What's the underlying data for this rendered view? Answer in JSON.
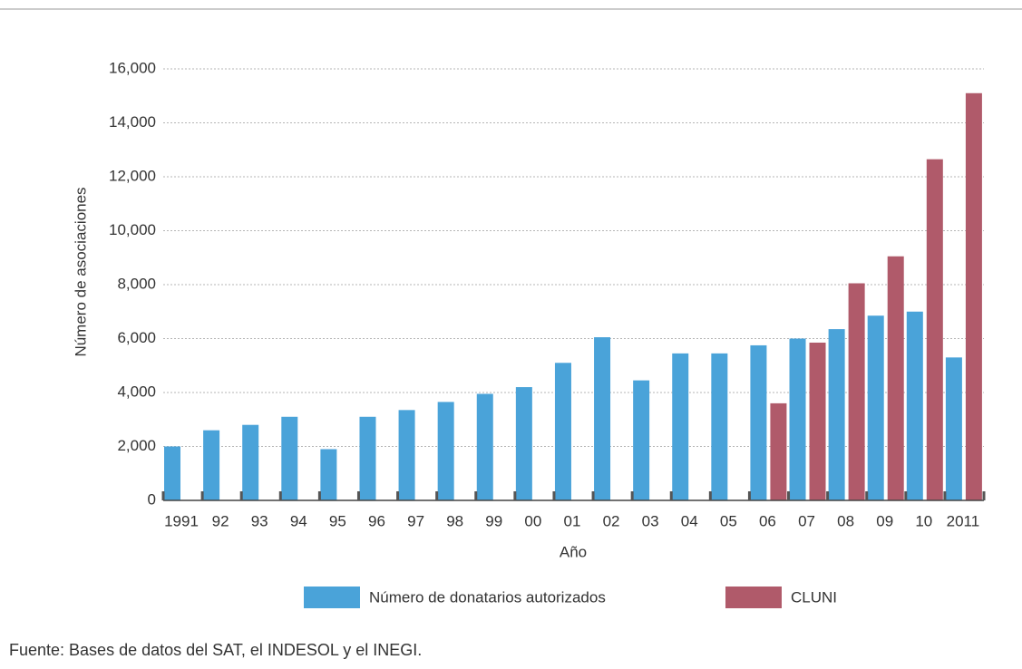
{
  "chart_data": {
    "type": "bar",
    "y_label": "Número de asociaciones",
    "x_label": "Año",
    "source": "Fuente: Bases de datos del SAT, el INDESOL y el INEGI.",
    "categories": [
      "1991",
      "92",
      "93",
      "94",
      "95",
      "96",
      "97",
      "98",
      "99",
      "00",
      "01",
      "02",
      "03",
      "04",
      "05",
      "06",
      "07",
      "08",
      "09",
      "10",
      "2011"
    ],
    "series": [
      {
        "name": "Número de donatarios autorizados",
        "color": "#4aa3d9",
        "values": [
          2000,
          2600,
          2800,
          3100,
          1900,
          3100,
          3350,
          3650,
          3950,
          4200,
          5100,
          6050,
          4450,
          5450,
          5450,
          5750,
          6000,
          6350,
          6850,
          7000,
          5300
        ]
      },
      {
        "name": "CLUNI",
        "color": "#b05a6a",
        "values": [
          null,
          null,
          null,
          null,
          null,
          null,
          null,
          null,
          null,
          null,
          null,
          null,
          null,
          null,
          null,
          3600,
          5850,
          8050,
          9050,
          12650,
          15100
        ]
      }
    ],
    "ylim": [
      0,
      16000
    ],
    "yticks": [
      0,
      {
        "value": 2000,
        "label": "2,000"
      },
      {
        "value": 4000,
        "label": "4,000"
      },
      {
        "value": 6000,
        "label": "6,000"
      },
      {
        "value": 8000,
        "label": "8,000"
      },
      {
        "value": 10000,
        "label": "10,000"
      },
      {
        "value": 12000,
        "label": "12,000"
      },
      {
        "value": 14000,
        "label": "14,000"
      },
      {
        "value": 16000,
        "label": "16,000"
      }
    ],
    "grid": true,
    "legend": "bottom"
  }
}
